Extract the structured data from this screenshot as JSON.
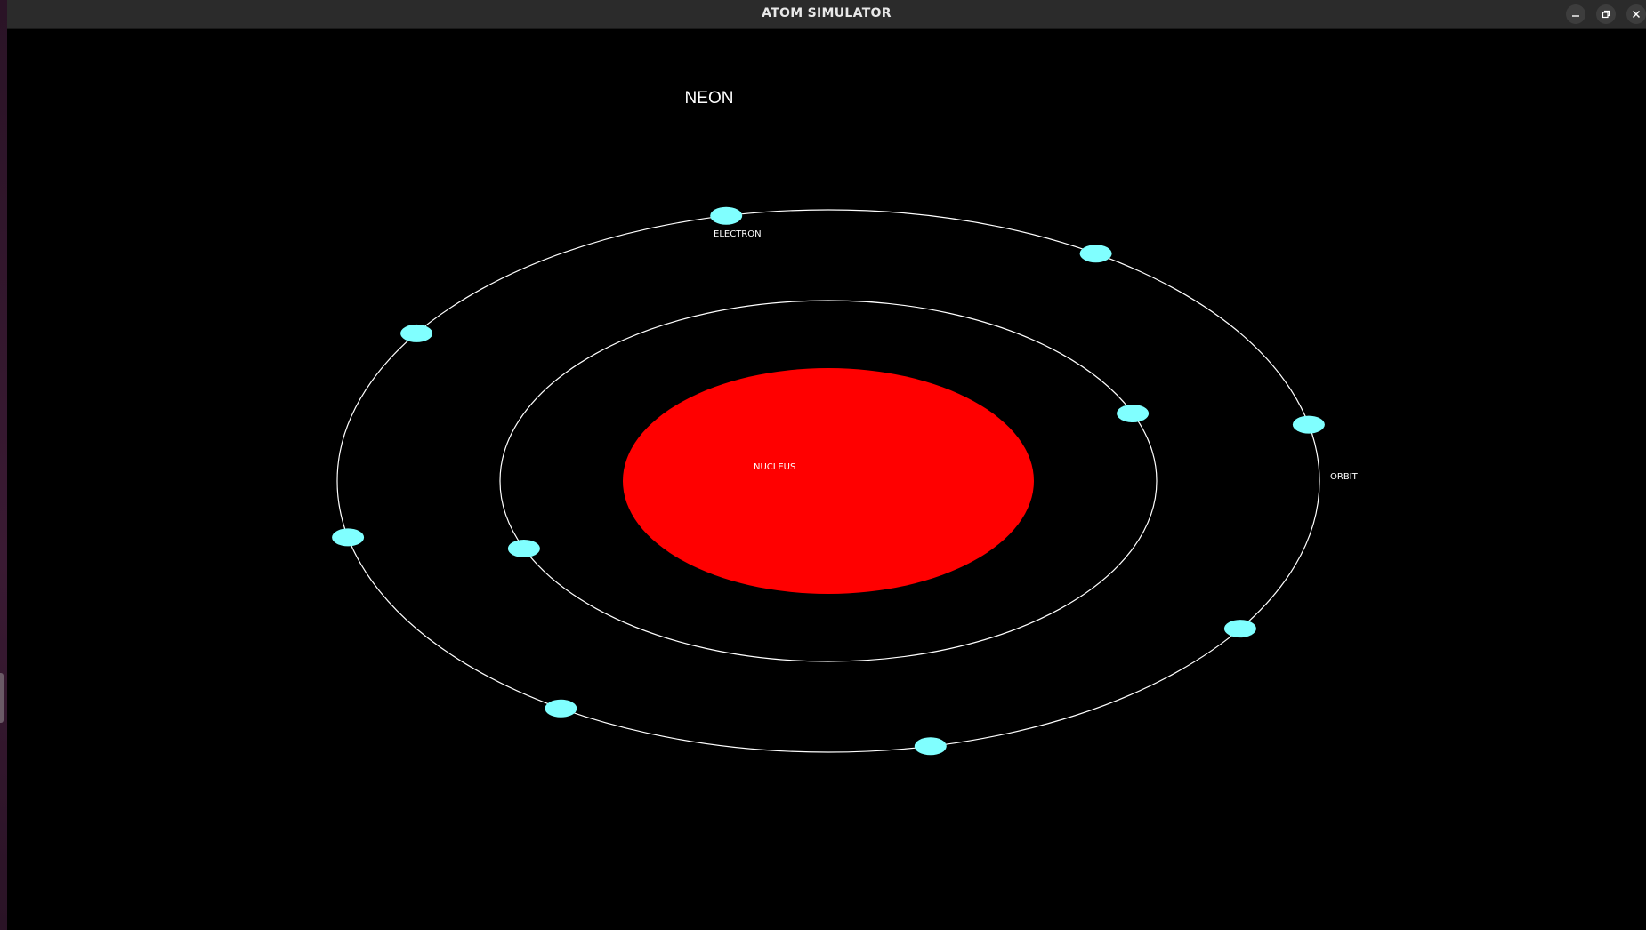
{
  "window": {
    "title": "ATOM SIMULATOR",
    "controls": [
      "minimize-icon",
      "restore-icon",
      "close-icon"
    ]
  },
  "simulation": {
    "element_name": "NEON",
    "labels": {
      "electron": "ELECTRON",
      "nucleus": "NUCLEUS",
      "orbit": "ORBIT"
    },
    "shells": [
      {
        "electron_count": 2
      },
      {
        "electron_count": 8
      }
    ],
    "colors": {
      "background": "#000000",
      "nucleus": "#ff0000",
      "electron": "#80ffff",
      "orbit": "#ffffff"
    }
  }
}
